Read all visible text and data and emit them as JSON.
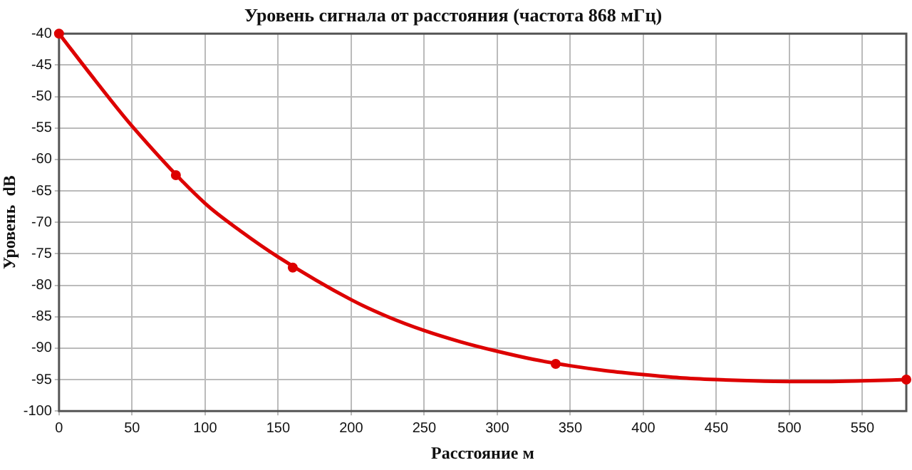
{
  "chart_data": {
    "type": "line",
    "title": "Уровень сигнала от расстояния (частота 868 мГц)",
    "xlabel": "Расстояние м",
    "ylabel": "Уровень  dB",
    "series": [
      {
        "color": "#dd0000",
        "marker": "none",
        "x": [
          0,
          25,
          50,
          100,
          125,
          150,
          200,
          225,
          250,
          275,
          300,
          325,
          350,
          375,
          400,
          425,
          450,
          475,
          500,
          525,
          550,
          580
        ],
        "values": [
          -40,
          -47.5,
          -54.7,
          -67,
          -71.5,
          -75.5,
          -82.3,
          -85,
          -87.2,
          -89,
          -90.5,
          -91.8,
          -92.8,
          -93.6,
          -94.2,
          -94.7,
          -95,
          -95.2,
          -95.3,
          -95.3,
          -95.2,
          -95
        ]
      },
      {
        "type": "scatter",
        "color": "#dd0000",
        "marker": "circle",
        "x": [
          0,
          80,
          160,
          340,
          580
        ],
        "values": [
          -40,
          -62.5,
          -77.2,
          -92.5,
          -95
        ]
      }
    ],
    "xlim": [
      0,
      580
    ],
    "xticks": [
      0,
      50,
      100,
      150,
      200,
      250,
      300,
      350,
      400,
      450,
      500,
      550
    ],
    "ylim": [
      -100,
      -40
    ],
    "yticks": [
      -100,
      -95,
      -90,
      -85,
      -80,
      -75,
      -70,
      -65,
      -60,
      -55,
      -50,
      -45,
      -40
    ],
    "grid": true,
    "legend": false
  }
}
